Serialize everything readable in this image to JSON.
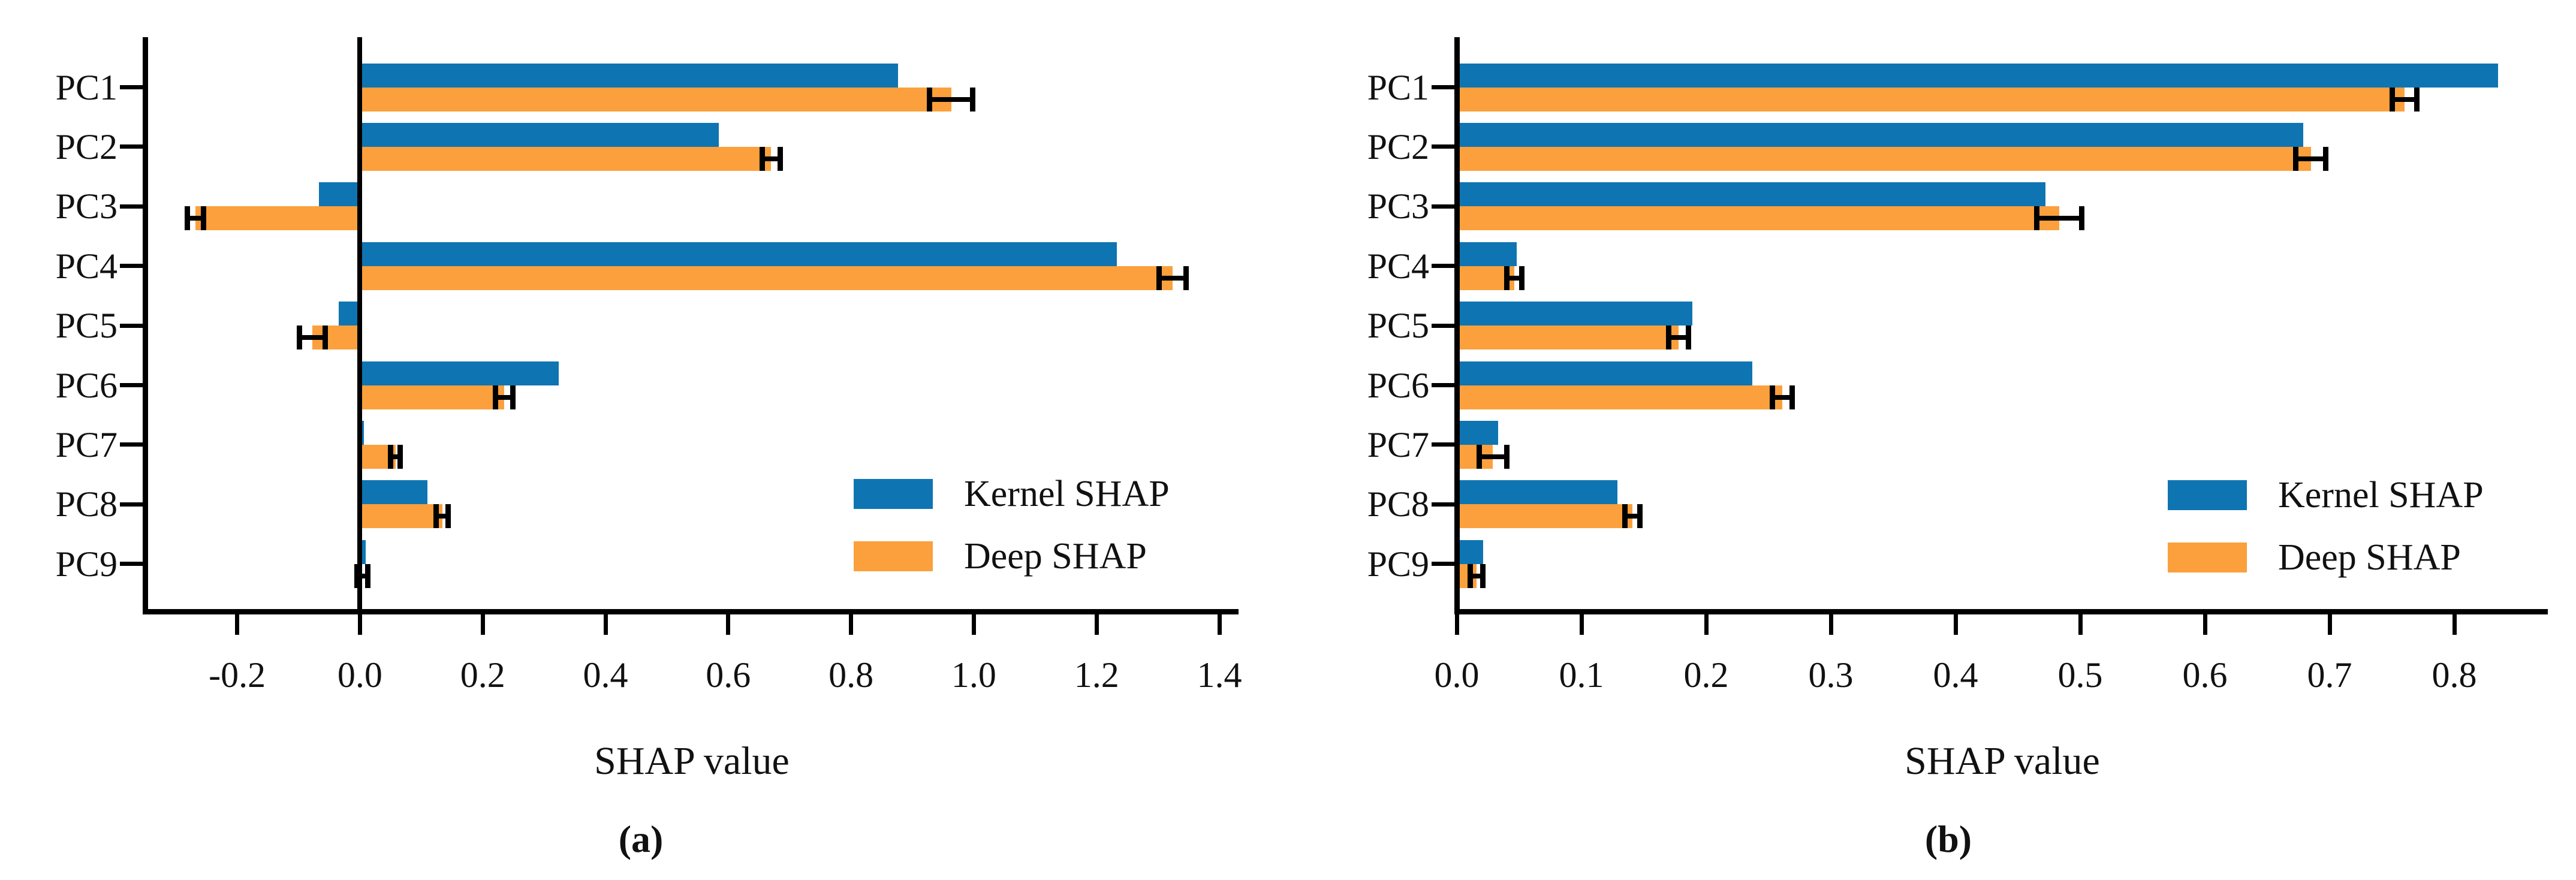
{
  "colors": {
    "kernel_shap": "#0e75b2",
    "deep_shap": "#fba03c",
    "error_bar": "#000000",
    "axis": "#000000",
    "text": "#111111",
    "background": "#ffffff"
  },
  "legend": {
    "items": [
      {
        "label": "Kernel SHAP",
        "series": "kernel_shap"
      },
      {
        "label": "Deep SHAP",
        "series": "deep_shap"
      }
    ]
  },
  "chart_data": [
    {
      "panel": "a",
      "type": "bar",
      "orientation": "horizontal",
      "caption": "(a)",
      "xlabel": "SHAP value",
      "categories": [
        "PC1",
        "PC2",
        "PC3",
        "PC4",
        "PC5",
        "PC6",
        "PC7",
        "PC8",
        "PC9"
      ],
      "series": [
        {
          "name": "Kernel SHAP",
          "color": "kernel_shap",
          "values": [
            0.877,
            0.585,
            -0.067,
            1.233,
            -0.035,
            0.324,
            0.006,
            0.11,
            0.009
          ]
        },
        {
          "name": "Deep SHAP",
          "color": "deep_shap",
          "values": [
            0.963,
            0.67,
            -0.268,
            1.324,
            -0.078,
            0.235,
            0.058,
            0.134,
            0.004
          ],
          "errors": [
            0.035,
            0.015,
            0.013,
            0.022,
            0.021,
            0.014,
            0.008,
            0.01,
            0.009
          ]
        }
      ],
      "xticks": [
        -0.2,
        0.0,
        0.2,
        0.4,
        0.6,
        0.8,
        1.0,
        1.2,
        1.4
      ],
      "xlim": [
        -0.35,
        1.43
      ],
      "zero_line": true,
      "grid": false,
      "legend_position": "lower right"
    },
    {
      "panel": "b",
      "type": "bar",
      "orientation": "horizontal",
      "caption": "(b)",
      "xlabel": "SHAP value",
      "categories": [
        "PC1",
        "PC2",
        "PC3",
        "PC4",
        "PC5",
        "PC6",
        "PC7",
        "PC8",
        "PC9"
      ],
      "series": [
        {
          "name": "Kernel SHAP",
          "color": "kernel_shap",
          "values": [
            0.835,
            0.679,
            0.472,
            0.048,
            0.189,
            0.237,
            0.033,
            0.129,
            0.021
          ]
        },
        {
          "name": "Deep SHAP",
          "color": "deep_shap",
          "values": [
            0.76,
            0.685,
            0.483,
            0.046,
            0.178,
            0.261,
            0.029,
            0.141,
            0.016
          ],
          "errors": [
            0.01,
            0.012,
            0.018,
            0.006,
            0.008,
            0.008,
            0.011,
            0.006,
            0.005
          ]
        }
      ],
      "xticks": [
        0.0,
        0.1,
        0.2,
        0.3,
        0.4,
        0.5,
        0.6,
        0.7,
        0.8
      ],
      "xlim": [
        0,
        0.875
      ],
      "zero_line": true,
      "grid": false,
      "legend_position": "lower right"
    }
  ]
}
